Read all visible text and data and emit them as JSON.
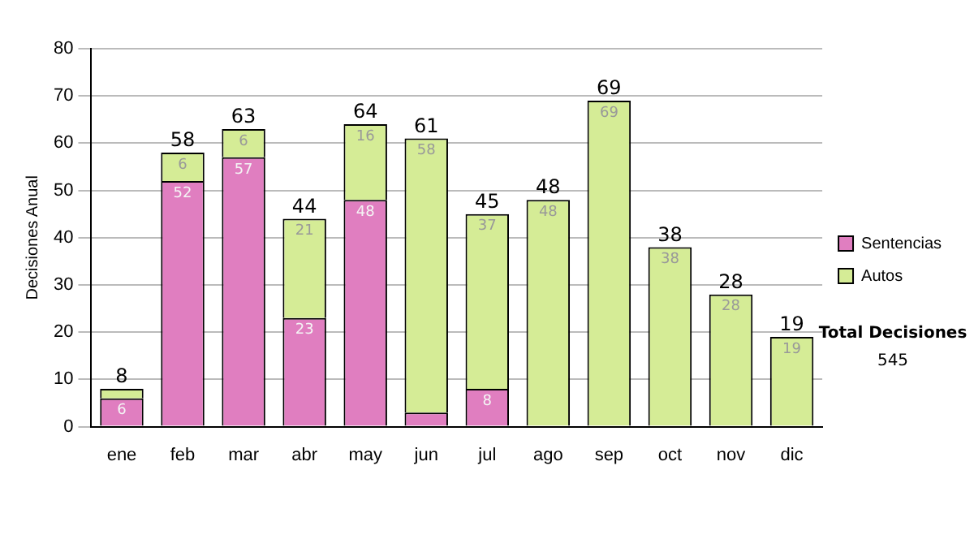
{
  "chart_data": {
    "type": "bar",
    "stacked": true,
    "ylabel": "Decisiones Anual",
    "categories": [
      "ene",
      "feb",
      "mar",
      "abr",
      "may",
      "jun",
      "jul",
      "ago",
      "sep",
      "oct",
      "nov",
      "dic"
    ],
    "series": [
      {
        "name": "Sentencias",
        "color": "#e07ec0",
        "values": [
          6,
          52,
          57,
          23,
          48,
          3,
          8,
          null,
          null,
          null,
          null,
          null
        ],
        "value_labels": [
          "6",
          "52",
          "57",
          "23",
          "48",
          null,
          "8",
          null,
          null,
          null,
          null,
          null
        ]
      },
      {
        "name": "Autos",
        "color": "#d5ec96",
        "values": [
          2,
          6,
          6,
          21,
          16,
          58,
          37,
          48,
          69,
          38,
          28,
          19
        ],
        "value_labels": [
          null,
          "6",
          "6",
          "21",
          "16",
          "58",
          "37",
          "48",
          "69",
          "38",
          "28",
          "19"
        ]
      }
    ],
    "totals": [
      "8",
      "58",
      "63",
      "44",
      "64",
      "61",
      "45",
      "48",
      "69",
      "38",
      "28",
      "19"
    ],
    "ylim": [
      0,
      80
    ],
    "yticks": [
      0,
      10,
      20,
      30,
      40,
      50,
      60,
      70,
      80
    ],
    "grid": "y",
    "legend": "right",
    "annotations": [
      "Total Decisiones",
      "545"
    ]
  }
}
